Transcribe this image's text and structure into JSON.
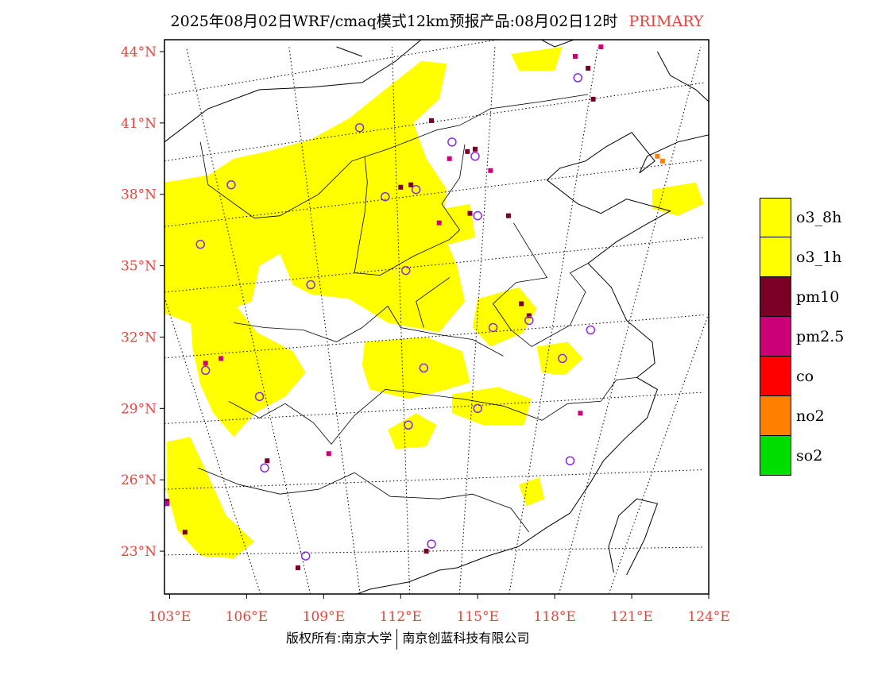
{
  "title": {
    "main": "2025年08月02日WRF/cmaq模式12km预报产品:08月02日12时",
    "tag": "PRIMARY",
    "tag_color": "#e8453c"
  },
  "axes": {
    "lat_labels": [
      "44°N",
      "41°N",
      "38°N",
      "35°N",
      "32°N",
      "29°N",
      "26°N",
      "23°N"
    ],
    "lat_values": [
      44,
      41,
      38,
      35,
      32,
      29,
      26,
      23
    ],
    "lon_labels": [
      "103°E",
      "106°E",
      "109°E",
      "112°E",
      "115°E",
      "118°E",
      "121°E",
      "124°E"
    ],
    "lon_values": [
      103,
      106,
      109,
      112,
      115,
      118,
      121,
      124
    ],
    "label_color": "#e8453c",
    "lon_range": [
      102.8,
      124
    ],
    "lat_range": [
      21.2,
      44.5
    ]
  },
  "legend": [
    {
      "label": "o3_8h",
      "color": "#ffff00"
    },
    {
      "label": "o3_1h",
      "color": "#ffff00"
    },
    {
      "label": "pm10",
      "color": "#7a0026"
    },
    {
      "label": "pm2.5",
      "color": "#cc0077"
    },
    {
      "label": "co",
      "color": "#ff0000"
    },
    {
      "label": "no2",
      "color": "#ff7f00"
    },
    {
      "label": "so2",
      "color": "#00dd00"
    }
  ],
  "footer": {
    "left": "版权所有:南京大学",
    "right": "南京创蓝科技有限公司"
  },
  "stations": [
    [
      118.9,
      42.9
    ],
    [
      110.4,
      40.8
    ],
    [
      114.0,
      40.2
    ],
    [
      114.9,
      39.6
    ],
    [
      105.4,
      38.4
    ],
    [
      111.4,
      37.9
    ],
    [
      112.6,
      38.2
    ],
    [
      115.0,
      37.1
    ],
    [
      104.2,
      35.9
    ],
    [
      112.2,
      34.8
    ],
    [
      108.5,
      34.2
    ],
    [
      115.6,
      32.4
    ],
    [
      117.0,
      32.7
    ],
    [
      119.4,
      32.3
    ],
    [
      118.3,
      31.1
    ],
    [
      104.4,
      30.6
    ],
    [
      112.9,
      30.7
    ],
    [
      106.5,
      29.5
    ],
    [
      115.0,
      29.0
    ],
    [
      112.3,
      28.3
    ],
    [
      118.6,
      26.8
    ],
    [
      106.7,
      26.5
    ],
    [
      102.7,
      25.0
    ],
    [
      108.3,
      22.8
    ],
    [
      113.2,
      23.3
    ]
  ]
}
